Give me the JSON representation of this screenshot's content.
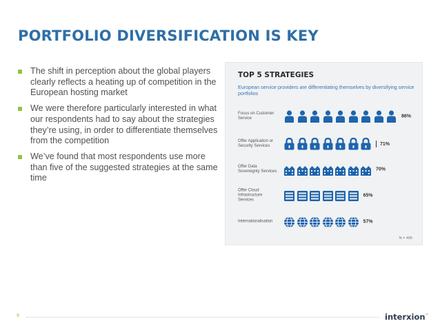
{
  "slide": {
    "title": "PORTFOLIO DIVERSIFICATION IS KEY",
    "page_number": "9",
    "logo_text": "interxion",
    "logo_tm": "™"
  },
  "bullets": [
    {
      "text": "The shift in perception about the global players clearly reflects a heating up of competition in the European hosting market"
    },
    {
      "text": "We were therefore particularly interested in what our respondents had to say about the strategies they’re using, in order to differentiate themselves from the competition"
    },
    {
      "text": "We’ve found that most respondents use more than five of the suggested strategies at the same time"
    }
  ],
  "infographic": {
    "title": "TOP 5 STRATEGIES",
    "subtitle": "European service providers are differentiating themselves by diversifying service portfolios",
    "n_label": "N = 406",
    "icon_color": "#1e64ad",
    "rows": [
      {
        "label": "Focus on Customer Service",
        "percent": 86,
        "percent_label": "86%",
        "icon": "person-icon",
        "icon_count": 9,
        "divider": false
      },
      {
        "label": "Offer Application or Security Services",
        "percent": 71,
        "percent_label": "71%",
        "icon": "padlock-icon",
        "icon_count": 7,
        "divider": true
      },
      {
        "label": "Offer Data Sovereignty Services",
        "percent": 70,
        "percent_label": "70%",
        "icon": "building-icon",
        "icon_count": 7,
        "divider": false
      },
      {
        "label": "Offer Cloud Infrastructure Services",
        "percent": 65,
        "percent_label": "65%",
        "icon": "server-icon",
        "icon_count": 6,
        "divider": false
      },
      {
        "label": "Internationalisation",
        "percent": 57,
        "percent_label": "57%",
        "icon": "globe-icon",
        "icon_count": 6,
        "divider": false
      }
    ]
  },
  "colors": {
    "title": "#2f6fa6",
    "bullet": "#8dc641",
    "panel_bg": "#f0f2f3",
    "subtitle": "#3a72b5"
  }
}
